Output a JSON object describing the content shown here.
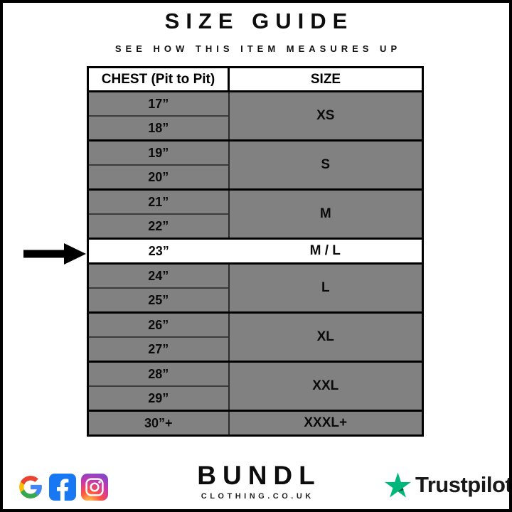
{
  "page": {
    "title": "SIZE GUIDE",
    "subtitle": "SEE HOW THIS ITEM MEASURES UP"
  },
  "table": {
    "headers": [
      "CHEST (Pit to Pit)",
      "SIZE"
    ],
    "groups": [
      {
        "measurements": [
          "17”",
          "18”"
        ],
        "size": "XS",
        "highlighted": false
      },
      {
        "measurements": [
          "19”",
          "20”"
        ],
        "size": "S",
        "highlighted": false
      },
      {
        "measurements": [
          "21”",
          "22”"
        ],
        "size": "M",
        "highlighted": false
      },
      {
        "measurements": [
          "23”"
        ],
        "size": "M / L",
        "highlighted": true
      },
      {
        "measurements": [
          "24”",
          "25”"
        ],
        "size": "L",
        "highlighted": false
      },
      {
        "measurements": [
          "26”",
          "27”"
        ],
        "size": "XL",
        "highlighted": false
      },
      {
        "measurements": [
          "28”",
          "29”"
        ],
        "size": "XXL",
        "highlighted": false
      },
      {
        "measurements": [
          "30”+"
        ],
        "size": "XXXL+",
        "highlighted": false
      }
    ],
    "highlight_pointer": "arrow-left-of-23-inch-row"
  },
  "footer": {
    "social_icons": [
      "google-icon",
      "facebook-icon",
      "instagram-icon"
    ],
    "brand": {
      "name": "BUNDL",
      "domain": "CLOTHING.CO.UK"
    },
    "trustpilot": {
      "label": "Trustpilot"
    }
  },
  "colors": {
    "row_gray": "#818181",
    "highlight_row": "#ffffff",
    "border_black": "#000000",
    "facebook_blue": "#1877F2",
    "trustpilot_green": "#00B67A",
    "trustpilot_dark_green": "#005128",
    "google_blue": "#4285F4",
    "google_red": "#EA4335",
    "google_yellow": "#FBBC05",
    "google_green": "#34A853"
  }
}
